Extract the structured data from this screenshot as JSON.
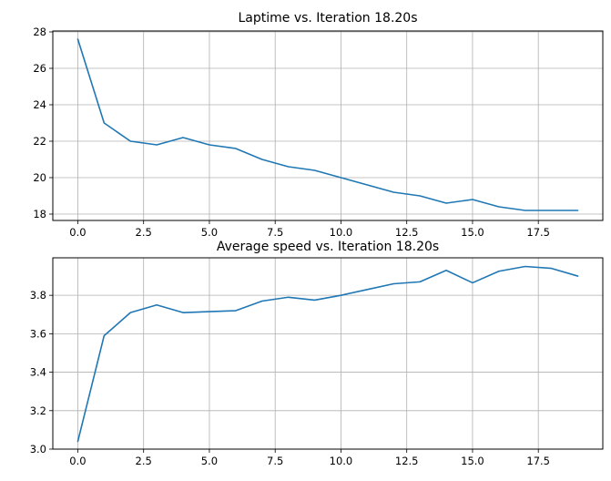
{
  "chart_data": [
    {
      "type": "line",
      "title": "Laptime vs. Iteration 18.20s",
      "xlabel": "",
      "ylabel": "",
      "xlim": [
        -0.95,
        19.95
      ],
      "ylim": [
        17.65,
        28.05
      ],
      "xticks": [
        0,
        2.5,
        5,
        7.5,
        10,
        12.5,
        15,
        17.5
      ],
      "xtick_labels": [
        "0.0",
        "2.5",
        "5.0",
        "7.5",
        "10.0",
        "12.5",
        "15.0",
        "17.5"
      ],
      "yticks": [
        18,
        20,
        22,
        24,
        26,
        28
      ],
      "ytick_labels": [
        "18",
        "20",
        "22",
        "24",
        "26",
        "28"
      ],
      "grid": true,
      "color": "#1f77b4",
      "x": [
        0,
        1,
        2,
        3,
        4,
        5,
        6,
        7,
        8,
        9,
        10,
        11,
        12,
        13,
        14,
        15,
        16,
        17,
        18,
        19
      ],
      "values": [
        27.6,
        23.0,
        22.0,
        21.8,
        22.2,
        21.8,
        21.6,
        21.0,
        20.6,
        20.4,
        20.0,
        19.6,
        19.2,
        19.0,
        18.6,
        18.8,
        18.4,
        18.2,
        18.2,
        18.2
      ]
    },
    {
      "type": "line",
      "title": "Average speed vs. Iteration 18.20s",
      "xlabel": "",
      "ylabel": "",
      "xlim": [
        -0.95,
        19.95
      ],
      "ylim": [
        3.0,
        3.995
      ],
      "xticks": [
        0,
        2.5,
        5,
        7.5,
        10,
        12.5,
        15,
        17.5
      ],
      "xtick_labels": [
        "0.0",
        "2.5",
        "5.0",
        "7.5",
        "10.0",
        "12.5",
        "15.0",
        "17.5"
      ],
      "yticks": [
        3.0,
        3.2,
        3.4,
        3.6,
        3.8
      ],
      "ytick_labels": [
        "3.0",
        "3.2",
        "3.4",
        "3.6",
        "3.8"
      ],
      "grid": true,
      "color": "#1f77b4",
      "x": [
        0,
        1,
        2,
        3,
        4,
        5,
        6,
        7,
        8,
        9,
        10,
        11,
        12,
        13,
        14,
        15,
        16,
        17,
        18,
        19
      ],
      "values": [
        3.04,
        3.59,
        3.71,
        3.75,
        3.71,
        3.715,
        3.72,
        3.77,
        3.79,
        3.775,
        3.8,
        3.83,
        3.86,
        3.87,
        3.93,
        3.865,
        3.925,
        3.95,
        3.94,
        3.9
      ]
    }
  ]
}
